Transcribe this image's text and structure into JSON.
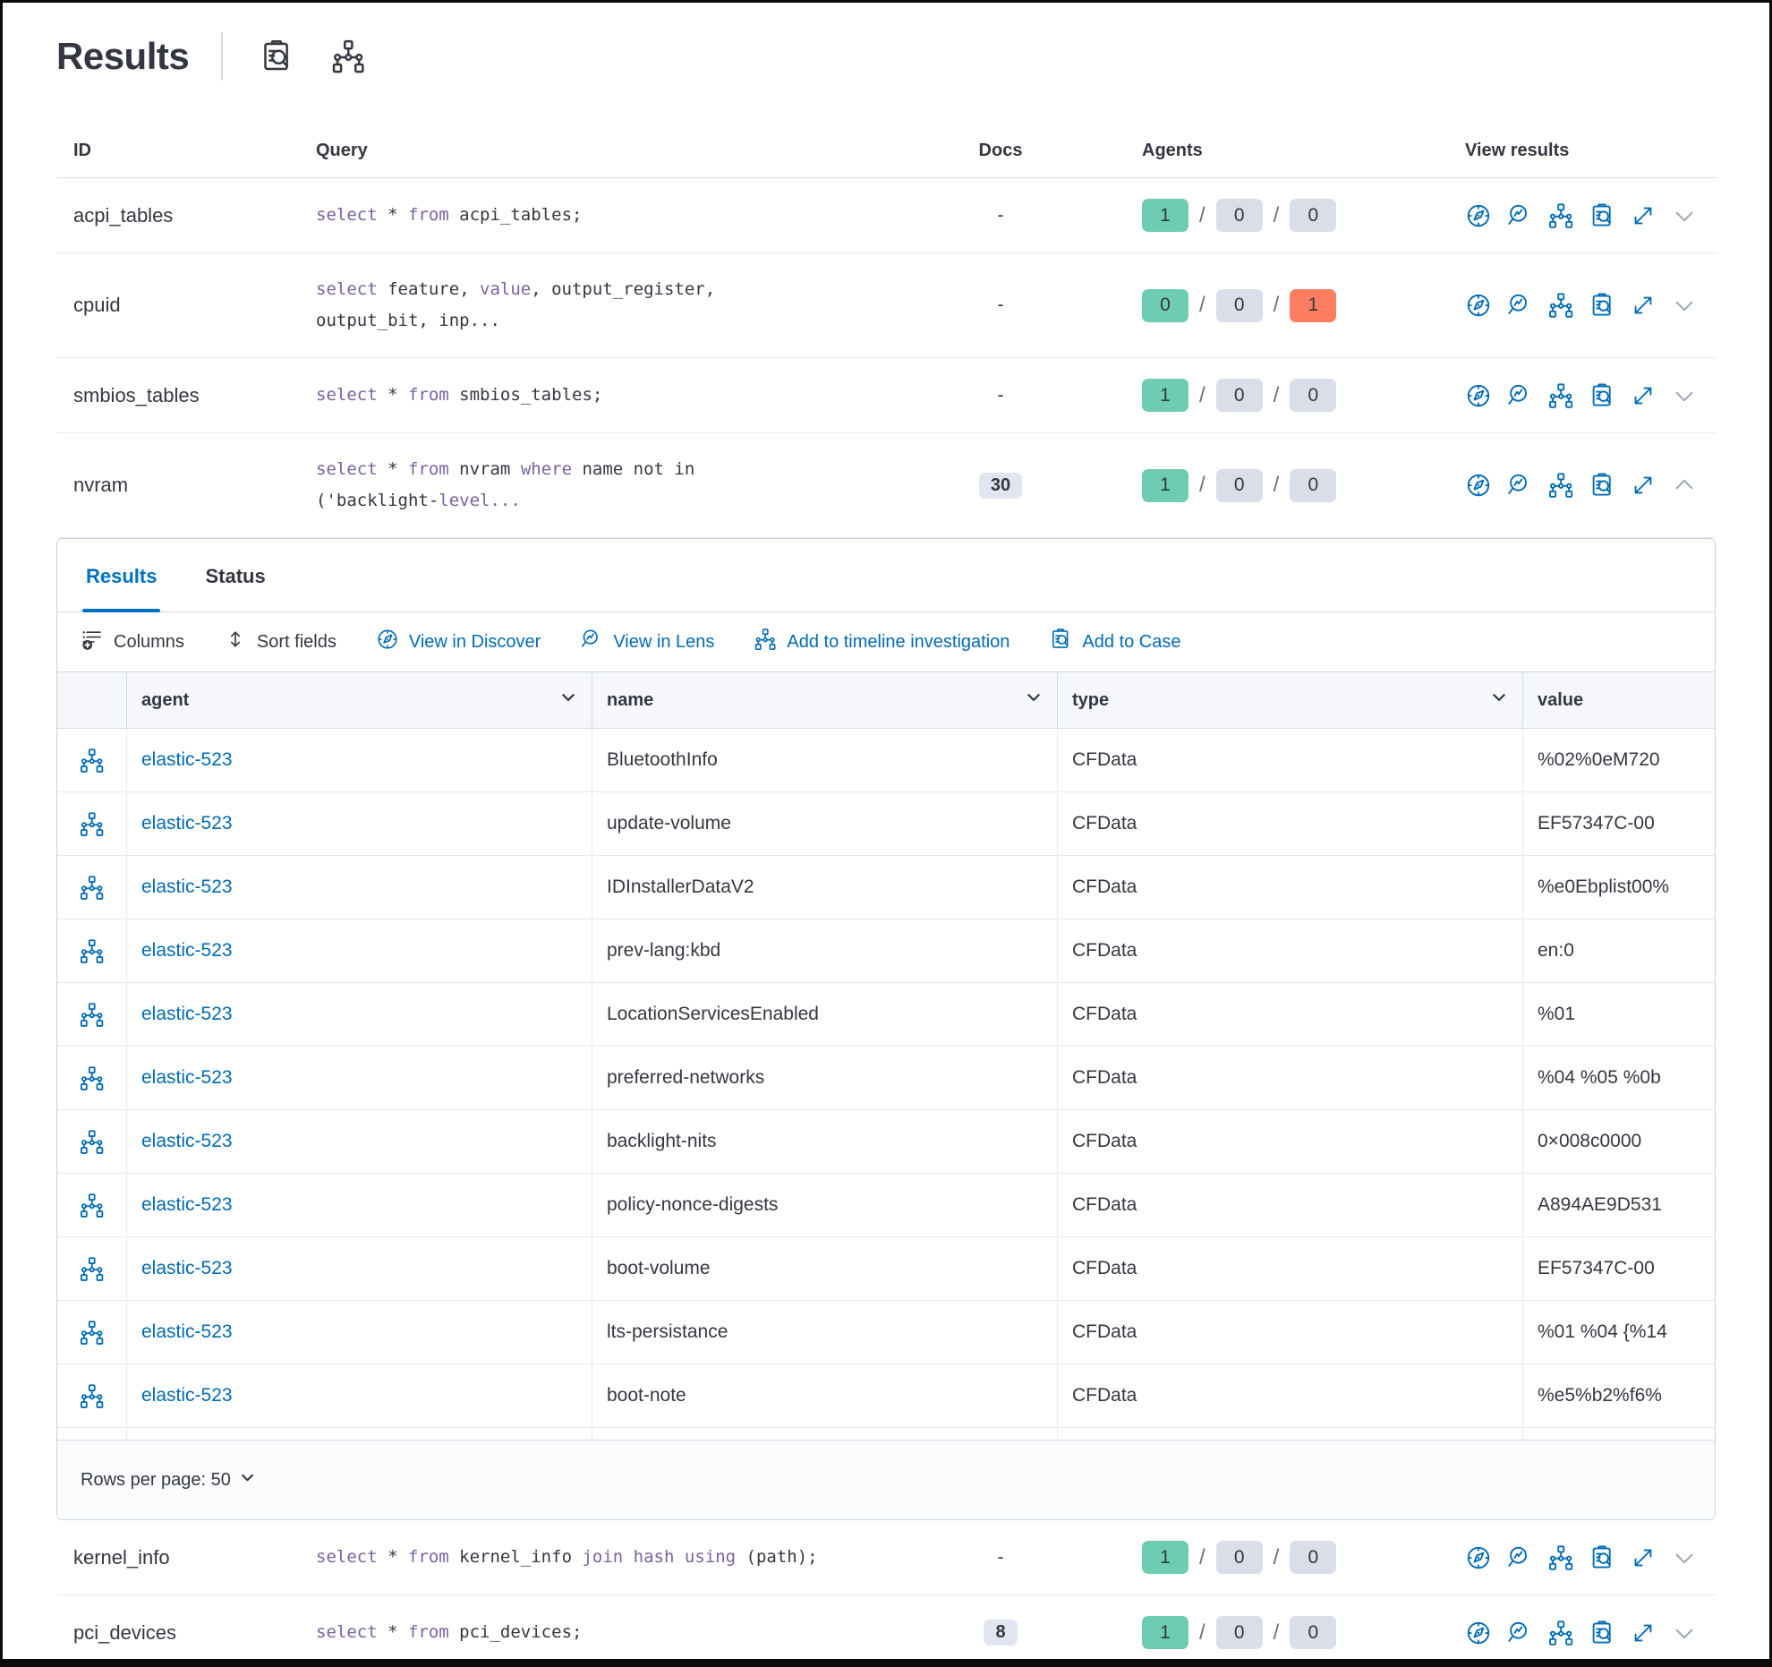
{
  "header": {
    "title": "Results",
    "actions": [
      {
        "name": "add-to-case",
        "icon": "case"
      },
      {
        "name": "add-to-timeline",
        "icon": "timeline"
      }
    ]
  },
  "colors": {
    "primary_blue": "#006BB4",
    "tab_active_blue": "#0071C2",
    "sql_keyword_purple": "#7B61A1",
    "success_badge": "#6DCCB1",
    "danger_badge": "#FF7E62",
    "neutral_badge": "#D9DEE9",
    "text": "#343741"
  },
  "results_table": {
    "columns": [
      "ID",
      "Query",
      "Docs",
      "Agents",
      "View results"
    ],
    "rows_top": [
      {
        "id": "acpi_tables",
        "query": [
          [
            [
              "select",
              true
            ],
            [
              " * ",
              false
            ],
            [
              "from",
              true
            ],
            [
              " acpi_tables;",
              false
            ]
          ]
        ],
        "docs": {
          "text": "-",
          "pill": false
        },
        "agents": [
          {
            "value": "1",
            "status": "success"
          },
          {
            "value": "0",
            "status": "neutral"
          },
          {
            "value": "0",
            "status": "neutral"
          }
        ],
        "expanded": false
      },
      {
        "id": "cpuid",
        "query": [
          [
            [
              "select",
              true
            ],
            [
              " feature, ",
              false
            ],
            [
              "value",
              true
            ],
            [
              ", output_register,",
              false
            ]
          ],
          [
            [
              "output_bit, inp...",
              false
            ]
          ]
        ],
        "docs": {
          "text": "-",
          "pill": false
        },
        "agents": [
          {
            "value": "0",
            "status": "success"
          },
          {
            "value": "0",
            "status": "neutral"
          },
          {
            "value": "1",
            "status": "danger"
          }
        ],
        "expanded": false
      },
      {
        "id": "smbios_tables",
        "query": [
          [
            [
              "select",
              true
            ],
            [
              " * ",
              false
            ],
            [
              "from",
              true
            ],
            [
              " smbios_tables;",
              false
            ]
          ]
        ],
        "docs": {
          "text": "-",
          "pill": false
        },
        "agents": [
          {
            "value": "1",
            "status": "success"
          },
          {
            "value": "0",
            "status": "neutral"
          },
          {
            "value": "0",
            "status": "neutral"
          }
        ],
        "expanded": false
      },
      {
        "id": "nvram",
        "query": [
          [
            [
              "select",
              true
            ],
            [
              " * ",
              false
            ],
            [
              "from",
              true
            ],
            [
              " nvram ",
              false
            ],
            [
              "where",
              true
            ],
            [
              " name not in",
              false
            ]
          ],
          [
            [
              "('backlight-",
              false
            ],
            [
              "level...",
              true
            ]
          ]
        ],
        "docs": {
          "text": "30",
          "pill": true
        },
        "agents": [
          {
            "value": "1",
            "status": "success"
          },
          {
            "value": "0",
            "status": "neutral"
          },
          {
            "value": "0",
            "status": "neutral"
          }
        ],
        "expanded": true
      }
    ],
    "rows_bottom": [
      {
        "id": "kernel_info",
        "query": [
          [
            [
              "select",
              true
            ],
            [
              " * ",
              false
            ],
            [
              "from",
              true
            ],
            [
              " kernel_info ",
              false
            ],
            [
              "join",
              true
            ],
            [
              " ",
              false
            ],
            [
              "hash",
              true
            ],
            [
              " ",
              false
            ],
            [
              "using",
              true
            ],
            [
              " (path);",
              false
            ]
          ]
        ],
        "docs": {
          "text": "-",
          "pill": false
        },
        "agents": [
          {
            "value": "1",
            "status": "success"
          },
          {
            "value": "0",
            "status": "neutral"
          },
          {
            "value": "0",
            "status": "neutral"
          }
        ],
        "expanded": false
      },
      {
        "id": "pci_devices",
        "query": [
          [
            [
              "select",
              true
            ],
            [
              " * ",
              false
            ],
            [
              "from",
              true
            ],
            [
              " pci_devices;",
              false
            ]
          ]
        ],
        "docs": {
          "text": "8",
          "pill": true
        },
        "agents": [
          {
            "value": "1",
            "status": "success"
          },
          {
            "value": "0",
            "status": "neutral"
          },
          {
            "value": "0",
            "status": "neutral"
          }
        ],
        "expanded": false
      }
    ]
  },
  "panel": {
    "tabs": [
      {
        "label": "Results",
        "active": true
      },
      {
        "label": "Status",
        "active": false
      }
    ],
    "toolbar": [
      {
        "label": "Columns",
        "icon": "columns",
        "variant": "dark",
        "name": "columns-button"
      },
      {
        "label": "Sort fields",
        "icon": "sort",
        "variant": "dark",
        "name": "sort-fields-button"
      },
      {
        "label": "View in Discover",
        "icon": "discover",
        "variant": "blue",
        "name": "view-in-discover-button"
      },
      {
        "label": "View in Lens",
        "icon": "lens",
        "variant": "blue",
        "name": "view-in-lens-button"
      },
      {
        "label": "Add to timeline investigation",
        "icon": "timeline",
        "variant": "blue",
        "name": "add-to-timeline-investigation-button"
      },
      {
        "label": "Add to Case",
        "icon": "case",
        "variant": "blue",
        "name": "add-to-case-button"
      }
    ],
    "columns": [
      {
        "label": "agent",
        "sortable": true
      },
      {
        "label": "name",
        "sortable": true
      },
      {
        "label": "type",
        "sortable": true
      },
      {
        "label": "value",
        "sortable": false
      }
    ],
    "rows": [
      {
        "agent": "elastic-523",
        "name": "BluetoothInfo",
        "type": "CFData",
        "value": "%02%0eM720"
      },
      {
        "agent": "elastic-523",
        "name": "update-volume",
        "type": "CFData",
        "value": "EF57347C-00"
      },
      {
        "agent": "elastic-523",
        "name": "IDInstallerDataV2",
        "type": "CFData",
        "value": "%e0Ebplist00%"
      },
      {
        "agent": "elastic-523",
        "name": "prev-lang:kbd",
        "type": "CFData",
        "value": "en:0"
      },
      {
        "agent": "elastic-523",
        "name": "LocationServicesEnabled",
        "type": "CFData",
        "value": "%01"
      },
      {
        "agent": "elastic-523",
        "name": "preferred-networks",
        "type": "CFData",
        "value": "%04 %05 %0b"
      },
      {
        "agent": "elastic-523",
        "name": "backlight-nits",
        "type": "CFData",
        "value": "0×008c0000"
      },
      {
        "agent": "elastic-523",
        "name": "policy-nonce-digests",
        "type": "CFData",
        "value": "A894AE9D531"
      },
      {
        "agent": "elastic-523",
        "name": "boot-volume",
        "type": "CFData",
        "value": "EF57347C-00"
      },
      {
        "agent": "elastic-523",
        "name": "lts-persistance",
        "type": "CFData",
        "value": "%01 %04 {%14"
      },
      {
        "agent": "elastic-523",
        "name": "boot-note",
        "type": "CFData",
        "value": "%e5%b2%f6%"
      }
    ],
    "footer": {
      "rows_per_page": "Rows per page: 50"
    }
  }
}
